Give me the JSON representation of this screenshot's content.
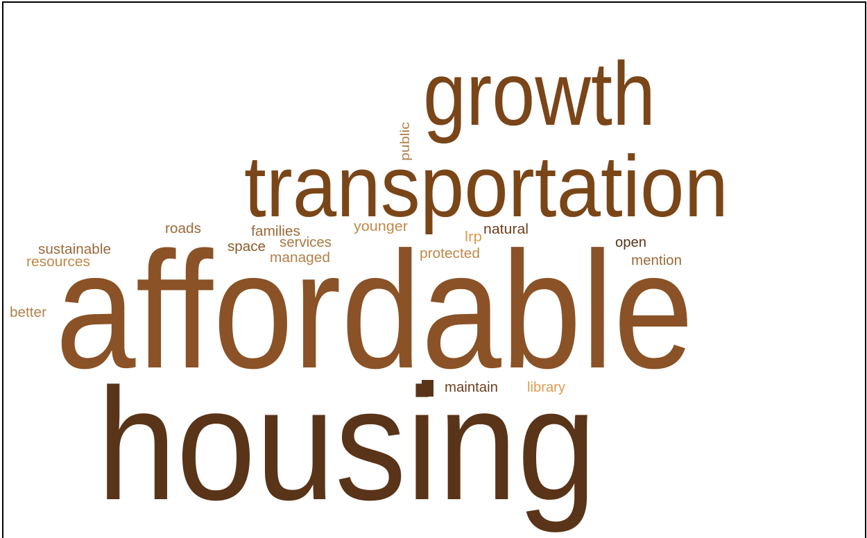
{
  "words": [
    {
      "text": "growth"
    },
    {
      "text": "transportation"
    },
    {
      "text": "affordable"
    },
    {
      "text": "housing"
    },
    {
      "text": "public"
    },
    {
      "text": "roads"
    },
    {
      "text": "families"
    },
    {
      "text": "younger"
    },
    {
      "text": "lrp"
    },
    {
      "text": "natural"
    },
    {
      "text": "sustainable"
    },
    {
      "text": "resources"
    },
    {
      "text": "space"
    },
    {
      "text": "services"
    },
    {
      "text": "managed"
    },
    {
      "text": "protected"
    },
    {
      "text": "open"
    },
    {
      "text": "mention"
    },
    {
      "text": "better"
    },
    {
      "text": "maintain"
    },
    {
      "text": "library"
    }
  ]
}
